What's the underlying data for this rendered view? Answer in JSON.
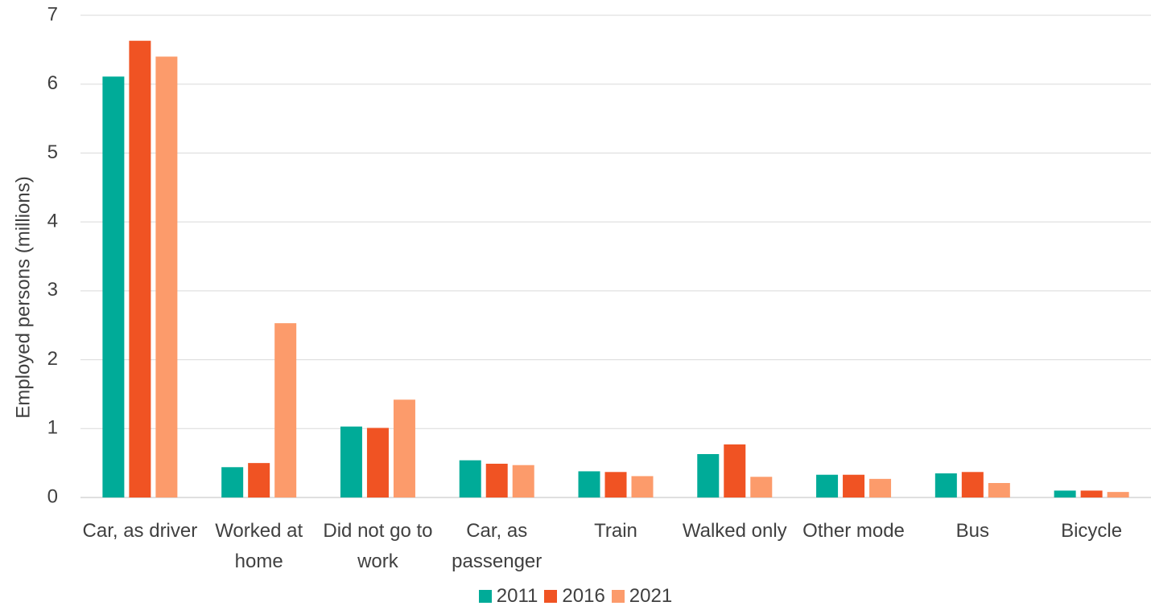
{
  "chart_data": {
    "type": "bar",
    "y_label": "Employed persons (millions)",
    "categories": [
      "Car, as driver",
      "Worked at home",
      "Did not go to work",
      "Car, as passenger",
      "Train",
      "Walked only",
      "Other mode",
      "Bus",
      "Bicycle"
    ],
    "series": [
      {
        "name": "2011",
        "color": "#00ab98",
        "values": [
          6.11,
          0.44,
          1.03,
          0.54,
          0.38,
          0.63,
          0.33,
          0.35,
          0.1
        ]
      },
      {
        "name": "2016",
        "color": "#f05323",
        "values": [
          6.63,
          0.5,
          1.01,
          0.49,
          0.37,
          0.77,
          0.33,
          0.37,
          0.1
        ]
      },
      {
        "name": "2021",
        "color": "#fc9b6b",
        "values": [
          6.4,
          2.53,
          1.42,
          0.47,
          0.31,
          0.3,
          0.27,
          0.21,
          0.08
        ]
      }
    ],
    "ylim": [
      0,
      7
    ],
    "yticks": [
      0,
      1,
      2,
      3,
      4,
      5,
      6,
      7
    ],
    "grid": true,
    "legend": "bottom"
  }
}
